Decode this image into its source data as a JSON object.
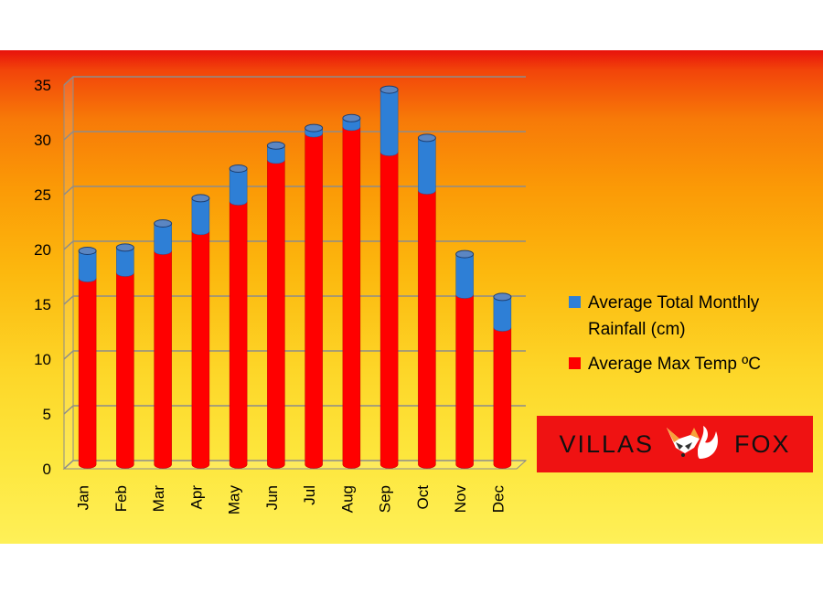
{
  "chart_data": {
    "type": "bar",
    "stacked": true,
    "categories": [
      "Jan",
      "Feb",
      "Mar",
      "Apr",
      "May",
      "Jun",
      "Jul",
      "Aug",
      "Sep",
      "Oct",
      "Nov",
      "Dec"
    ],
    "series": [
      {
        "name": "Average Max Temp ºC",
        "color": "#ff0000",
        "values": [
          17,
          17.5,
          19.5,
          21.3,
          24,
          27.8,
          30.2,
          30.8,
          28.5,
          25,
          15.5,
          12.5
        ]
      },
      {
        "name": "Average Total Monthly Rainfall (cm)",
        "color": "#2e7fd6",
        "values": [
          2.5,
          2.3,
          2.5,
          3,
          3,
          1.3,
          0.5,
          0.8,
          5.7,
          4.8,
          3.7,
          2.8
        ]
      }
    ],
    "yticks": [
      "0",
      "5",
      "10",
      "15",
      "20",
      "25",
      "30",
      "35"
    ],
    "ylim": [
      0,
      35
    ],
    "grid": true,
    "legend_position": "right",
    "title": "",
    "xlabel": "",
    "ylabel": ""
  },
  "legend": {
    "items": [
      {
        "label": "Average Total Monthly Rainfall (cm)",
        "color": "#2e7fd6"
      },
      {
        "label": "Average Max Temp ºC",
        "color": "#ff0000"
      }
    ]
  },
  "logo": {
    "left_text": "VILLAS",
    "right_text": "FOX",
    "icon": "fox-icon"
  }
}
